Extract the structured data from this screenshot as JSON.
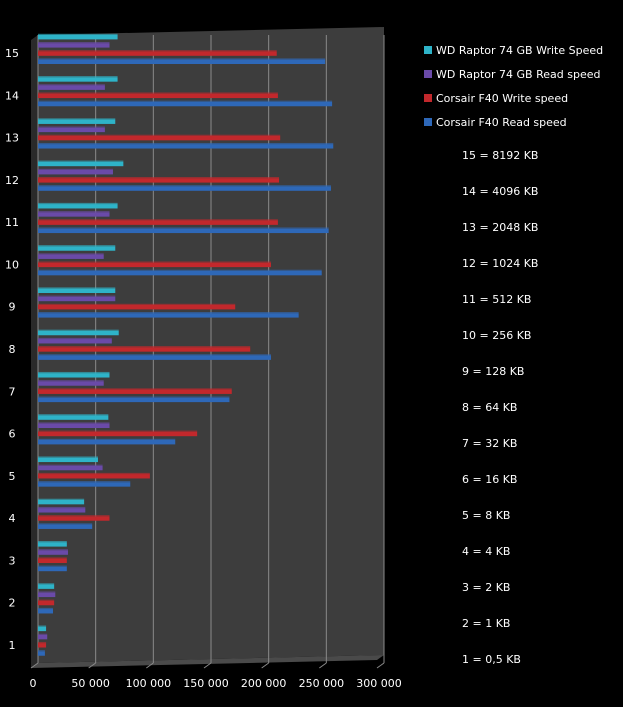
{
  "chart_data": {
    "type": "bar",
    "orientation": "horizontal",
    "categories": [
      "1",
      "2",
      "3",
      "4",
      "5",
      "6",
      "7",
      "8",
      "9",
      "10",
      "11",
      "12",
      "13",
      "14",
      "15"
    ],
    "series": [
      {
        "name": "WD Raptor 74 GB Write Speed",
        "color": "#2eb3c8",
        "values": [
          7000,
          14000,
          25000,
          40000,
          52000,
          61000,
          62000,
          70000,
          67000,
          67000,
          69000,
          74000,
          67000,
          69000,
          69000
        ]
      },
      {
        "name": "WD Raptor 74 GB Read speed",
        "color": "#6a4aa8",
        "values": [
          8000,
          15000,
          26000,
          41000,
          56000,
          62000,
          57000,
          64000,
          67000,
          57000,
          62000,
          65000,
          58000,
          58000,
          62000
        ]
      },
      {
        "name": "Corsair F40 Write speed",
        "color": "#c2282c",
        "values": [
          7000,
          14000,
          25000,
          62000,
          97000,
          138000,
          168000,
          184000,
          171000,
          202000,
          208000,
          209000,
          210000,
          208000,
          207000
        ]
      },
      {
        "name": "Corsair F40 Read speed",
        "color": "#2e68b8",
        "values": [
          6000,
          13000,
          25000,
          47000,
          80000,
          119000,
          166000,
          202000,
          226000,
          246000,
          252000,
          254000,
          256000,
          255000,
          249000
        ]
      }
    ],
    "xlim": [
      0,
      300000
    ],
    "xticks": [
      "0",
      "50 000",
      "100 000",
      "150 000",
      "200 000",
      "250 000",
      "300 000"
    ],
    "grid": true,
    "legend_position": "right",
    "block_size_key": [
      "15 = 8192 KB",
      "14 = 4096 KB",
      "13 = 2048 KB",
      "12 = 1024 KB",
      "11 = 512 KB",
      "10 = 256 KB",
      "9 = 128 KB",
      "8 = 64 KB",
      "7 = 32 KB",
      "6 = 16 KB",
      "5 = 8 KB",
      "4 = 4 KB",
      "3 = 2 KB",
      "2 = 1 KB",
      "1 = 0,5 KB"
    ]
  }
}
